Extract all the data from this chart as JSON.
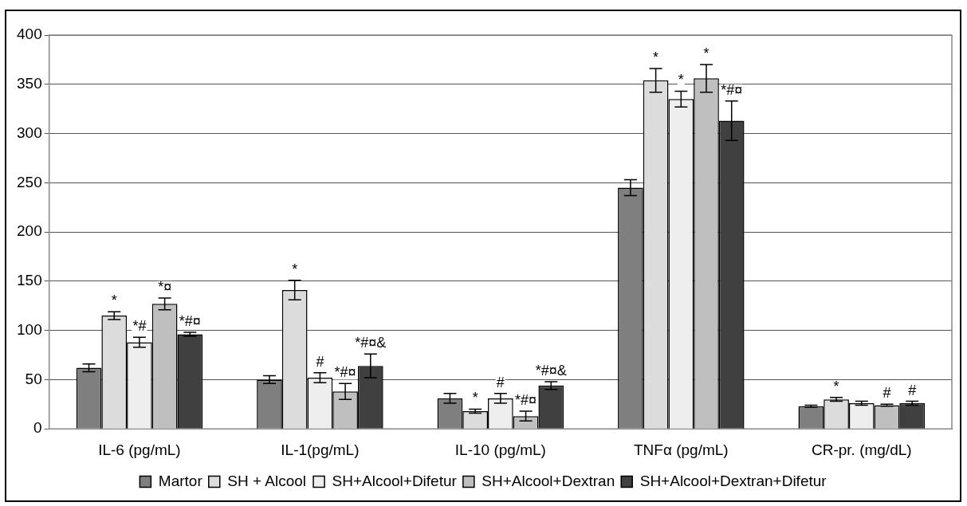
{
  "chart_data": {
    "type": "bar",
    "categories": [
      "IL-6 (pg/mL)",
      "IL-1(pg/mL)",
      "IL-10 (pg/mL)",
      "TNFα (pg/mL)",
      "CR-pr. (mg/dL)"
    ],
    "series": [
      {
        "name": "Martor",
        "color": "#7f7f7f",
        "values": [
          62,
          50,
          31,
          245,
          23
        ],
        "errors": [
          4,
          4,
          5,
          8,
          1
        ],
        "value_labels": [
          null,
          null,
          null,
          null,
          null
        ]
      },
      {
        "name": "SH + Alcool",
        "color": "#dcdcdc",
        "values": [
          115,
          141,
          18,
          354,
          30
        ],
        "errors": [
          4,
          10,
          2,
          12,
          2
        ],
        "value_labels": [
          "*",
          "*",
          "*",
          "*",
          "*"
        ]
      },
      {
        "name": "SH+Alcool+Difetur",
        "color": "#eeeeee",
        "values": [
          88,
          52,
          31,
          335,
          26
        ],
        "errors": [
          5,
          5,
          5,
          8,
          2
        ],
        "value_labels": [
          "*#",
          "#",
          "#",
          "*",
          null
        ]
      },
      {
        "name": "SH+Alcool+Dextran",
        "color": "#bfbfbf",
        "values": [
          127,
          38,
          13,
          356,
          24
        ],
        "errors": [
          6,
          8,
          5,
          14,
          1
        ],
        "value_labels": [
          "*¤",
          "*#¤",
          "*#¤",
          "*",
          "#"
        ]
      },
      {
        "name": "SH+Alcool+Dextran+Difetur",
        "color": "#404040",
        "values": [
          96,
          64,
          44,
          313,
          26
        ],
        "errors": [
          2,
          12,
          4,
          20,
          2
        ],
        "value_labels": [
          "*#¤",
          "*#¤&",
          "*#¤&",
          "*#¤",
          "#"
        ]
      }
    ],
    "ylim": [
      0,
      400
    ],
    "yticks": [
      0,
      50,
      100,
      150,
      200,
      250,
      300,
      350,
      400
    ],
    "grid": "y",
    "legend": "bottom"
  }
}
